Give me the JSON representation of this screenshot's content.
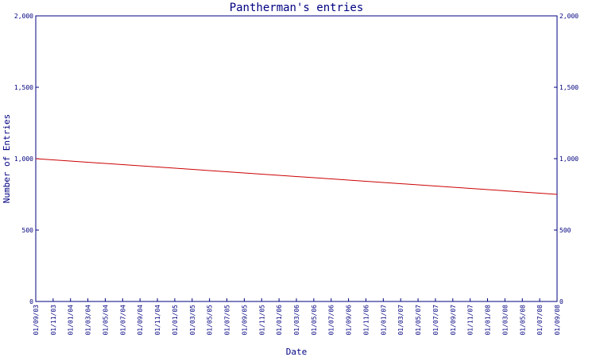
{
  "chart_data": {
    "type": "line",
    "title": "Pantherman's entries",
    "xlabel": "Date",
    "ylabel": "Number of Entries",
    "ylim": [
      0,
      2000
    ],
    "yticks": [
      0,
      500,
      1000,
      1500,
      2000
    ],
    "ytick_labels": [
      "0",
      "500",
      "1,000",
      "1,500",
      "2,000"
    ],
    "x_tick_labels": [
      "01/09/03",
      "01/11/03",
      "01/01/04",
      "01/03/04",
      "01/05/04",
      "01/07/04",
      "01/09/04",
      "01/11/04",
      "01/01/05",
      "01/03/05",
      "01/05/05",
      "01/07/05",
      "01/09/05",
      "01/11/05",
      "01/01/06",
      "01/03/06",
      "01/05/06",
      "01/07/06",
      "01/09/06",
      "01/11/06",
      "01/01/07",
      "01/03/07",
      "01/05/07",
      "01/07/07",
      "01/09/07",
      "01/11/07",
      "01/01/08",
      "01/03/08",
      "01/05/08",
      "01/07/08",
      "01/09/08"
    ],
    "grid": false,
    "colors": {
      "axis": "#000080",
      "series": "#cc0000"
    },
    "series": [
      {
        "x": [
          "01/09/03",
          "01/09/08"
        ],
        "values": [
          1000,
          750
        ]
      }
    ]
  }
}
